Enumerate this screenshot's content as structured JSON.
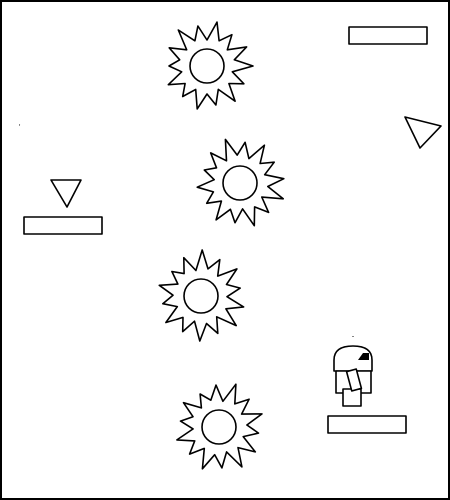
{
  "title": "",
  "colors": {
    "stroke": "#000000",
    "background": "#ffffff"
  },
  "label_boxes": [
    {
      "name": "label-box-top-right",
      "text": ""
    },
    {
      "name": "label-box-left",
      "text": ""
    },
    {
      "name": "label-box-bottom-right",
      "text": ""
    }
  ],
  "bursts": {
    "count": 4,
    "icon": "sun-burst-icon"
  },
  "arrows": [
    {
      "name": "curved-down-arrow",
      "icon": "curved-arrow-down-icon"
    },
    {
      "name": "long-up-arrow",
      "icon": "curved-arrow-up-right-icon"
    }
  ],
  "device": {
    "icon": "robot-device-icon"
  }
}
